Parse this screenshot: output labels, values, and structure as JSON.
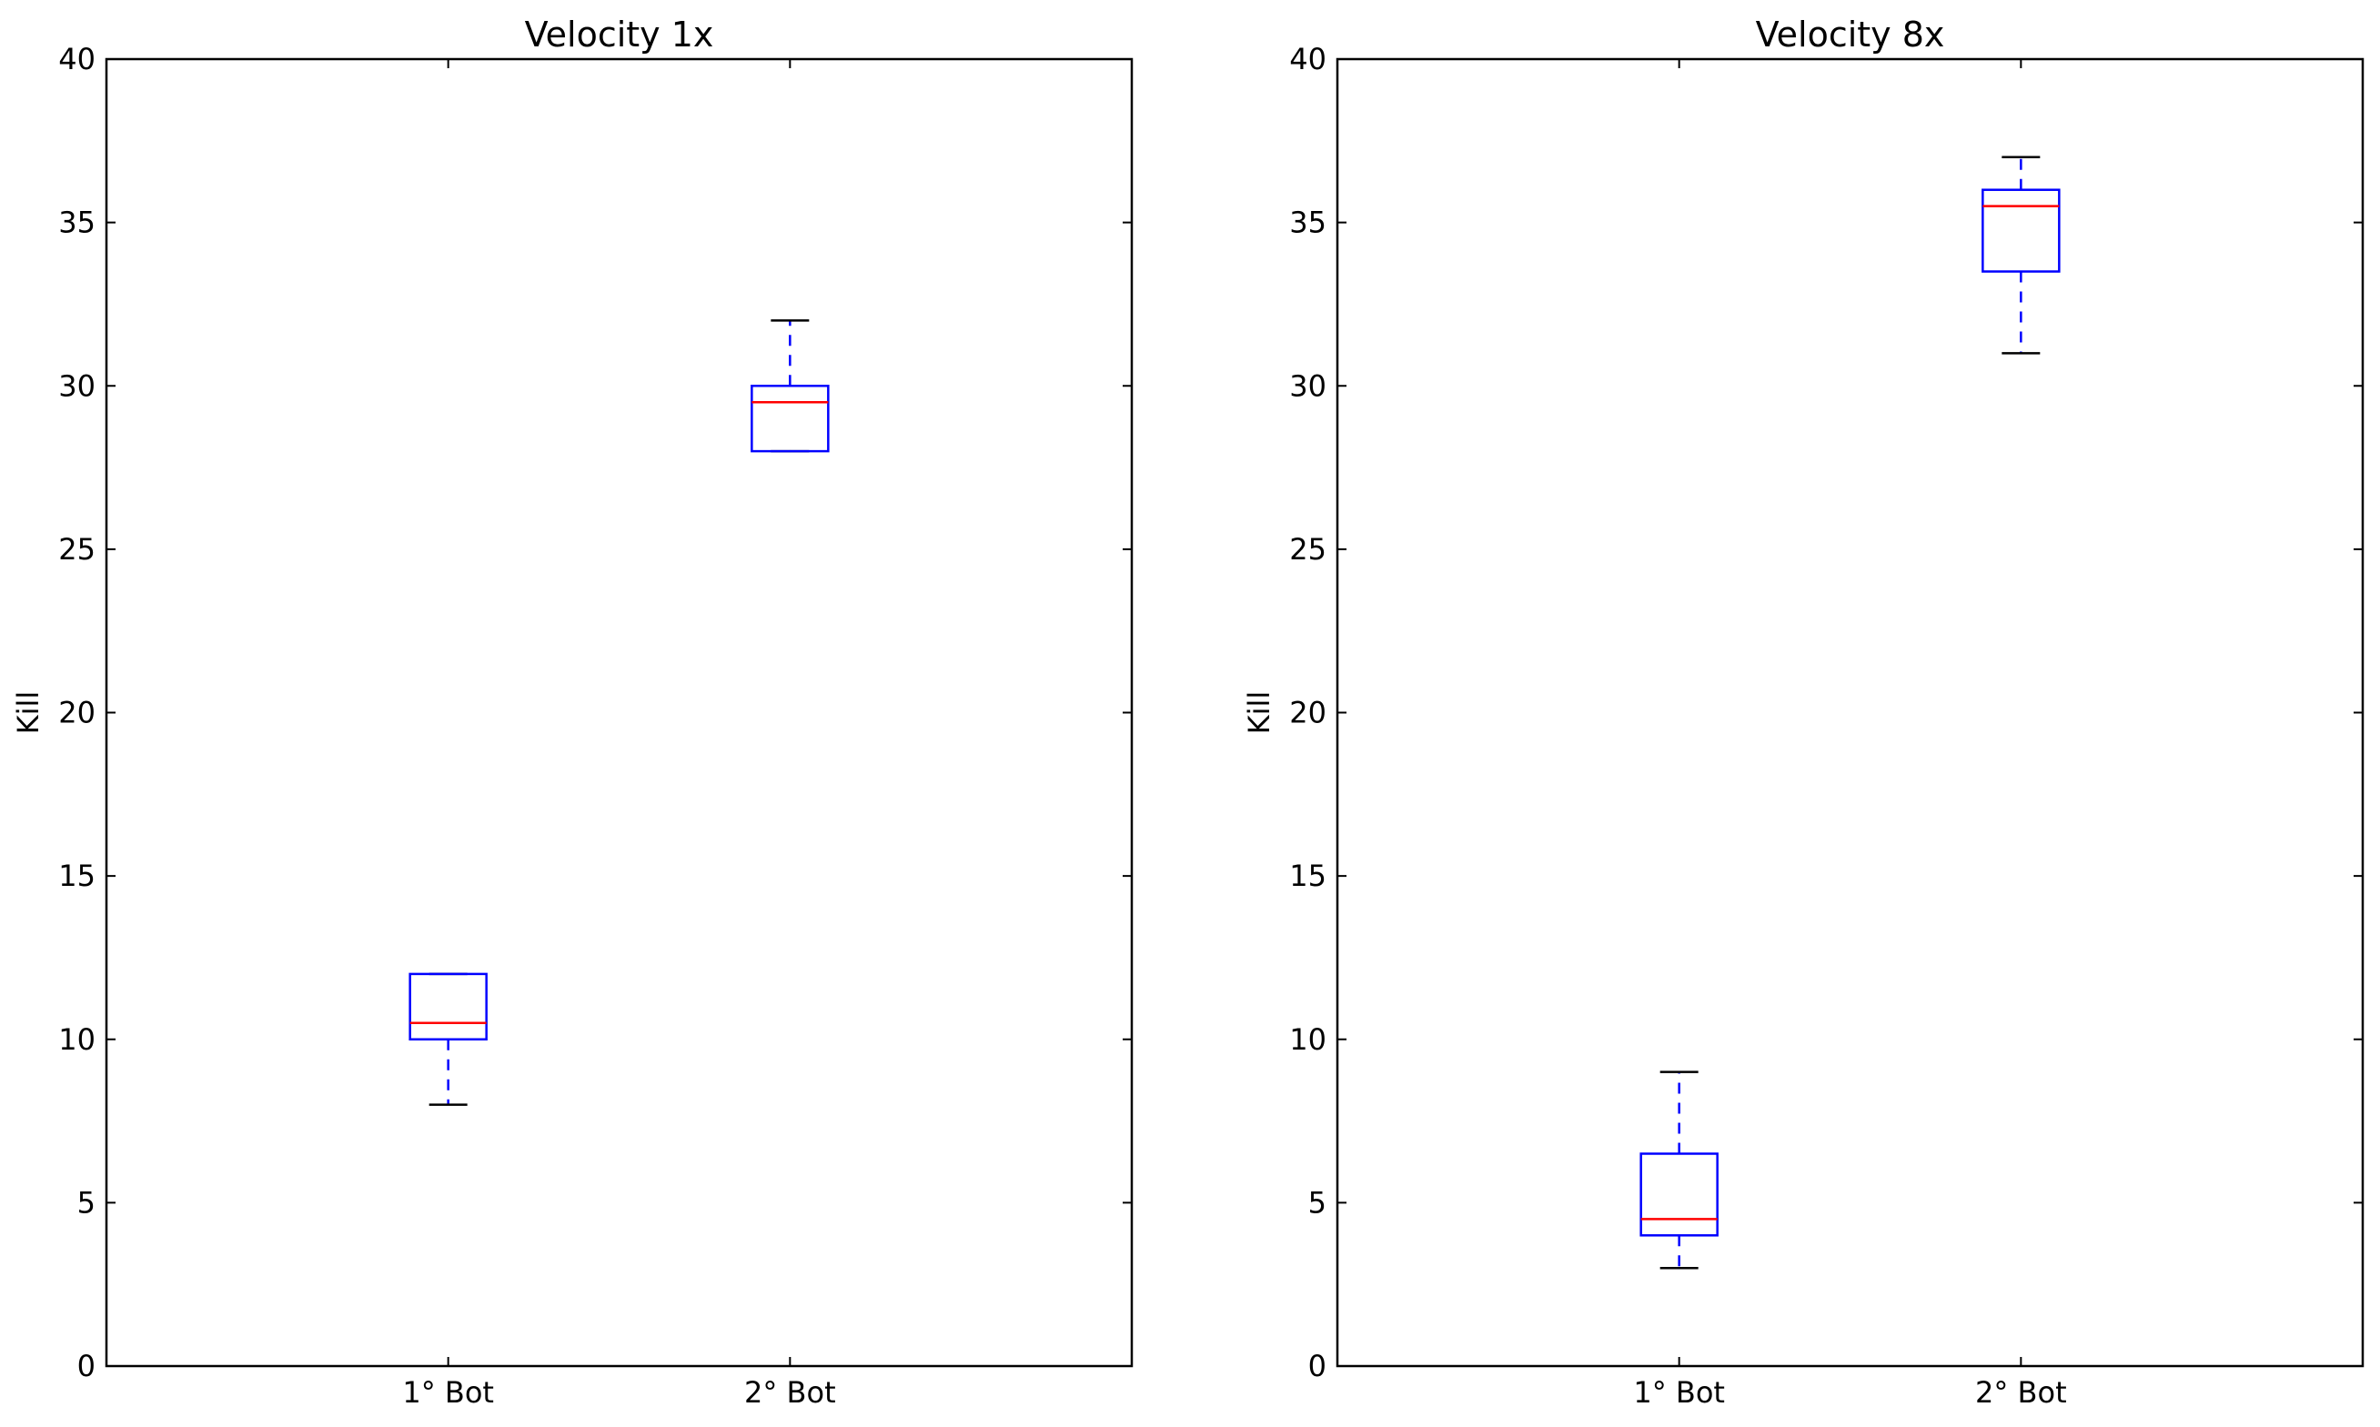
{
  "chart_data": [
    {
      "type": "box",
      "title": "Velocity 1x",
      "xlabel": "",
      "ylabel": "Kill",
      "ylim": [
        0,
        40
      ],
      "yticks": [
        0,
        5,
        10,
        15,
        20,
        25,
        30,
        35,
        40
      ],
      "categories": [
        "1° Bot",
        "2° Bot"
      ],
      "boxes": [
        {
          "category": "1° Bot",
          "whisker_low": 8,
          "q1": 10,
          "median": 10.5,
          "q3": 12,
          "whisker_high": 12
        },
        {
          "category": "2° Bot",
          "whisker_low": 28,
          "q1": 28,
          "median": 29.5,
          "q3": 30,
          "whisker_high": 32
        }
      ],
      "grid": false,
      "colors": {
        "box": "#0000ff",
        "median": "#ff0000",
        "cap": "#000000"
      }
    },
    {
      "type": "box",
      "title": "Velocity 8x",
      "xlabel": "",
      "ylabel": "Kill",
      "ylim": [
        0,
        40
      ],
      "yticks": [
        0,
        5,
        10,
        15,
        20,
        25,
        30,
        35,
        40
      ],
      "categories": [
        "1° Bot",
        "2° Bot"
      ],
      "boxes": [
        {
          "category": "1° Bot",
          "whisker_low": 3,
          "q1": 4,
          "median": 4.5,
          "q3": 6.5,
          "whisker_high": 9
        },
        {
          "category": "2° Bot",
          "whisker_low": 31,
          "q1": 33.5,
          "median": 35.5,
          "q3": 36,
          "whisker_high": 37
        }
      ],
      "grid": false,
      "colors": {
        "box": "#0000ff",
        "median": "#ff0000",
        "cap": "#000000"
      }
    }
  ]
}
